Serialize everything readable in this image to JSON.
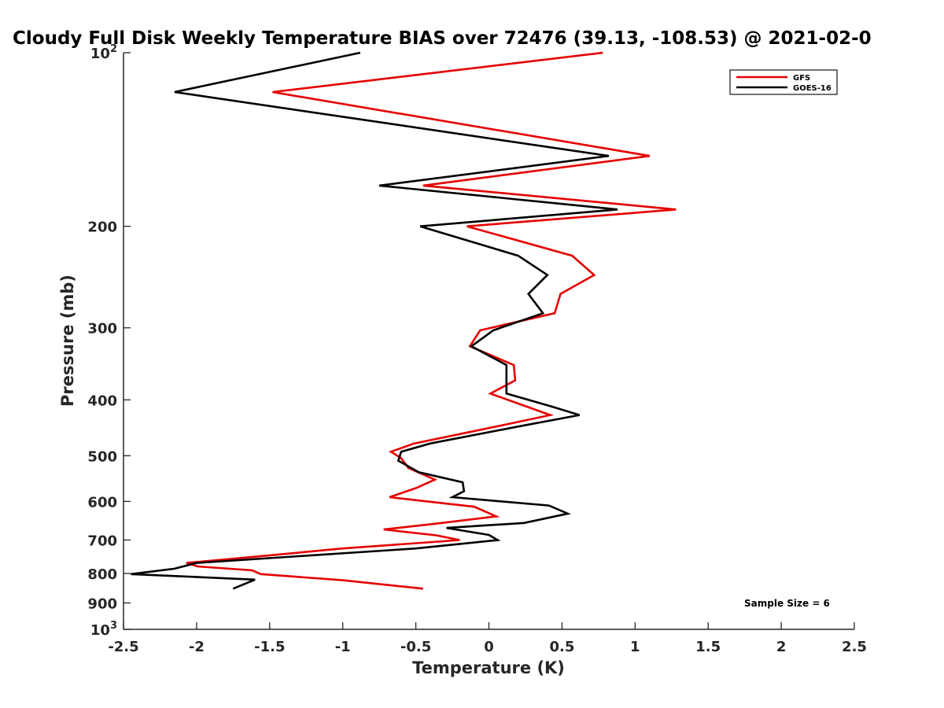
{
  "chart_data": {
    "type": "line",
    "title": "Cloudy Full Disk Weekly Temperature BIAS over 72476 (39.13, -108.53) @ 2021-02-0",
    "xlabel": "Temperature (K)",
    "ylabel": "Pressure (mb)",
    "xlim": [
      -2.5,
      2.5
    ],
    "ylim": [
      100,
      1000
    ],
    "y_scale": "log",
    "y_reversed": true,
    "grid": false,
    "legend_position": "top-right",
    "x_ticks": [
      {
        "value": -2.5,
        "label": "-2.5"
      },
      {
        "value": -2,
        "label": "-2"
      },
      {
        "value": -1.5,
        "label": "-1.5"
      },
      {
        "value": -1,
        "label": "-1"
      },
      {
        "value": -0.5,
        "label": "-0.5"
      },
      {
        "value": 0,
        "label": "0"
      },
      {
        "value": 0.5,
        "label": "0.5"
      },
      {
        "value": 1,
        "label": "1"
      },
      {
        "value": 1.5,
        "label": "1.5"
      },
      {
        "value": 2,
        "label": "2"
      },
      {
        "value": 2.5,
        "label": "2.5"
      }
    ],
    "y_ticks": [
      {
        "value": 100,
        "base": "10",
        "exp": "2"
      },
      {
        "value": 200,
        "label": "200"
      },
      {
        "value": 300,
        "label": "300"
      },
      {
        "value": 400,
        "label": "400"
      },
      {
        "value": 500,
        "label": "500"
      },
      {
        "value": 600,
        "label": "600"
      },
      {
        "value": 700,
        "label": "700"
      },
      {
        "value": 800,
        "label": "800"
      },
      {
        "value": 900,
        "label": "900"
      },
      {
        "value": 1000,
        "base": "10",
        "exp": "3"
      }
    ],
    "series": [
      {
        "name": "GFS",
        "color": "#e60000",
        "x": [
          0.78,
          -1.48,
          1.1,
          -0.45,
          1.28,
          -0.15,
          0.57,
          0.72,
          0.49,
          0.45,
          -0.06,
          -0.13,
          0.17,
          0.18,
          0.01,
          0.42,
          0.05,
          -0.51,
          -0.67,
          -0.6,
          -0.55,
          -0.37,
          -0.5,
          -0.68,
          -0.1,
          0.05,
          -0.37,
          -0.72,
          -0.36,
          -0.2,
          -1.0,
          -1.52,
          -2.07,
          -1.99,
          -1.62,
          -1.56,
          -1.0,
          -0.45
        ],
        "y": [
          100,
          117,
          151,
          170,
          187,
          200,
          225,
          243,
          262,
          283,
          303,
          323,
          348,
          370,
          390,
          425,
          445,
          476,
          492,
          505,
          525,
          550,
          569,
          590,
          613,
          637,
          656,
          671,
          687,
          700,
          724,
          745,
          767,
          778,
          790,
          802,
          822,
          850
        ]
      },
      {
        "name": "GOES-16",
        "color": "#000000",
        "x": [
          -0.88,
          -2.15,
          0.82,
          -0.75,
          0.88,
          -0.47,
          0.2,
          0.4,
          0.27,
          0.37,
          0.03,
          -0.12,
          0.12,
          0.12,
          0.12,
          0.42,
          0.62,
          0.2,
          -0.4,
          -0.6,
          -0.62,
          -0.48,
          -0.18,
          -0.17,
          -0.25,
          0.41,
          0.54,
          0.24,
          -0.29,
          0.0,
          0.06,
          -0.5,
          -2.0,
          -2.15,
          -2.45,
          -1.6,
          -1.75
        ],
        "y": [
          100,
          117,
          151,
          170,
          187,
          200,
          225,
          243,
          262,
          283,
          303,
          323,
          348,
          370,
          390,
          410,
          425,
          445,
          476,
          492,
          510,
          534,
          556,
          576,
          590,
          610,
          630,
          654,
          667,
          686,
          700,
          724,
          767,
          785,
          802,
          820,
          850
        ]
      }
    ],
    "annotation": "Sample Size = 6"
  }
}
